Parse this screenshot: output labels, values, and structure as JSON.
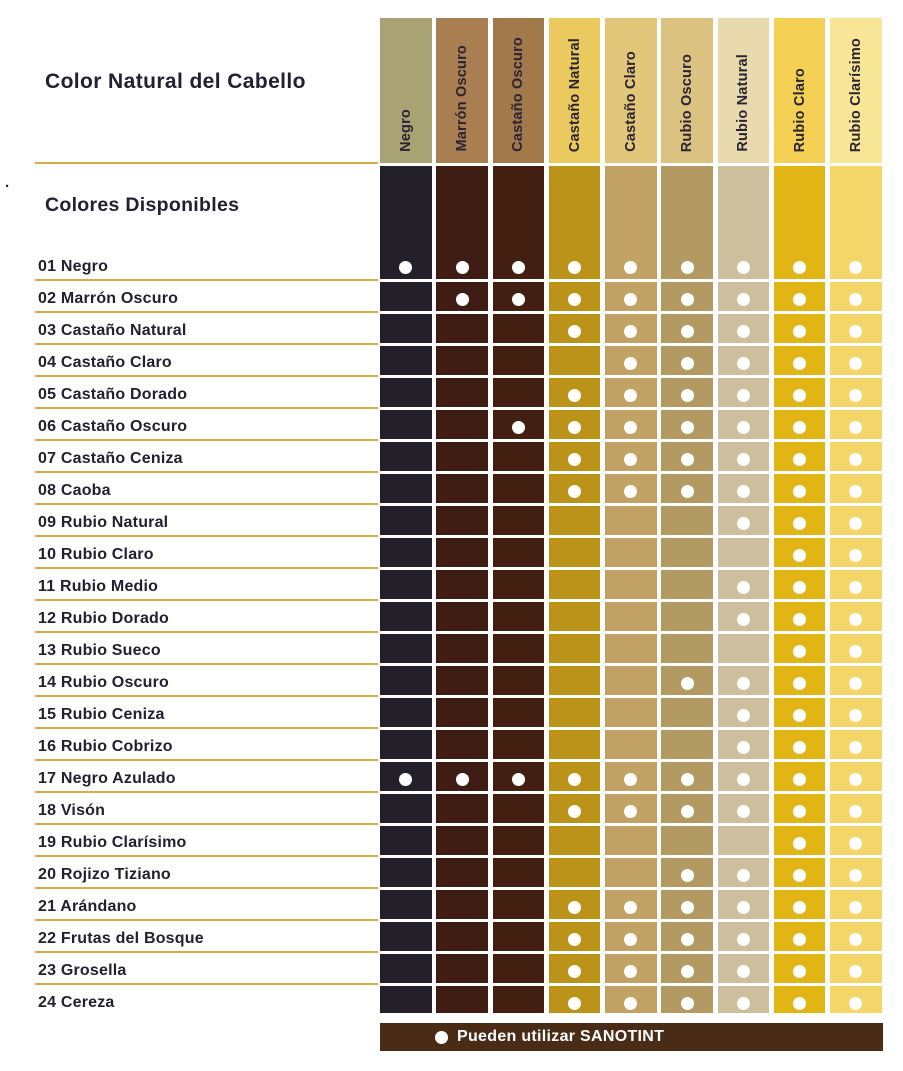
{
  "title": "Color Natural del Cabello",
  "subtitle": "Colores Disponibles",
  "stray_mark": ".",
  "footer": {
    "dot_icon": "legend-dot",
    "label": "Pueden utilizar SANOTINT",
    "bg": "#4a2b16"
  },
  "colors": {
    "background": "#ffffff",
    "gold_line": "#d9ad45",
    "text_dark": "#232031",
    "dot_white": "#ffffff"
  },
  "columns": [
    {
      "label": "Negro",
      "header": "#a8a274",
      "body": "#242029"
    },
    {
      "label": "Marrón Oscuro",
      "header": "#a97f52",
      "body": "#3f1c14"
    },
    {
      "label": "Castaño Oscuro",
      "header": "#a2794b",
      "body": "#421f10"
    },
    {
      "label": "Castaño Natural",
      "header": "#eac95e",
      "body": "#ba9318"
    },
    {
      "label": "Castaño Claro",
      "header": "#e2c77a",
      "body": "#c1a164"
    },
    {
      "label": "Rubio Oscuro",
      "header": "#dcc280",
      "body": "#b29a62"
    },
    {
      "label": "Rubio Natural",
      "header": "#e9daae",
      "body": "#cdbf9e"
    },
    {
      "label": "Rubio Claro",
      "header": "#f4d055",
      "body": "#e1b513"
    },
    {
      "label": "Rubio Clarísimo",
      "header": "#f7e695",
      "body": "#f4d668"
    }
  ],
  "rows": [
    {
      "label": "01 Negro",
      "compatible": [
        1,
        1,
        1,
        1,
        1,
        1,
        1,
        1,
        1
      ]
    },
    {
      "label": "02 Marrón Oscuro",
      "compatible": [
        0,
        1,
        1,
        1,
        1,
        1,
        1,
        1,
        1
      ]
    },
    {
      "label": "03 Castaño Natural",
      "compatible": [
        0,
        0,
        0,
        1,
        1,
        1,
        1,
        1,
        1
      ]
    },
    {
      "label": "04 Castaño Claro",
      "compatible": [
        0,
        0,
        0,
        0,
        1,
        1,
        1,
        1,
        1
      ]
    },
    {
      "label": "05 Castaño Dorado",
      "compatible": [
        0,
        0,
        0,
        1,
        1,
        1,
        1,
        1,
        1
      ]
    },
    {
      "label": "06 Castaño Oscuro",
      "compatible": [
        0,
        0,
        1,
        1,
        1,
        1,
        1,
        1,
        1
      ]
    },
    {
      "label": "07 Castaño Ceniza",
      "compatible": [
        0,
        0,
        0,
        1,
        1,
        1,
        1,
        1,
        1
      ]
    },
    {
      "label": "08 Caoba",
      "compatible": [
        0,
        0,
        0,
        1,
        1,
        1,
        1,
        1,
        1
      ]
    },
    {
      "label": "09 Rubio Natural",
      "compatible": [
        0,
        0,
        0,
        0,
        0,
        0,
        1,
        1,
        1
      ]
    },
    {
      "label": "10 Rubio Claro",
      "compatible": [
        0,
        0,
        0,
        0,
        0,
        0,
        0,
        1,
        1
      ]
    },
    {
      "label": "11 Rubio Medio",
      "compatible": [
        0,
        0,
        0,
        0,
        0,
        0,
        1,
        1,
        1
      ]
    },
    {
      "label": "12 Rubio Dorado",
      "compatible": [
        0,
        0,
        0,
        0,
        0,
        0,
        1,
        1,
        1
      ]
    },
    {
      "label": "13 Rubio Sueco",
      "compatible": [
        0,
        0,
        0,
        0,
        0,
        0,
        0,
        1,
        1
      ]
    },
    {
      "label": "14 Rubio Oscuro",
      "compatible": [
        0,
        0,
        0,
        0,
        0,
        1,
        1,
        1,
        1
      ]
    },
    {
      "label": "15 Rubio Ceniza",
      "compatible": [
        0,
        0,
        0,
        0,
        0,
        0,
        1,
        1,
        1
      ]
    },
    {
      "label": "16 Rubio Cobrizo",
      "compatible": [
        0,
        0,
        0,
        0,
        0,
        0,
        1,
        1,
        1
      ]
    },
    {
      "label": "17 Negro Azulado",
      "compatible": [
        1,
        1,
        1,
        1,
        1,
        1,
        1,
        1,
        1
      ]
    },
    {
      "label": "18 Visón",
      "compatible": [
        0,
        0,
        0,
        1,
        1,
        1,
        1,
        1,
        1
      ]
    },
    {
      "label": "19 Rubio Clarísimo",
      "compatible": [
        0,
        0,
        0,
        0,
        0,
        0,
        0,
        1,
        1
      ]
    },
    {
      "label": "20 Rojizo Tiziano",
      "compatible": [
        0,
        0,
        0,
        0,
        0,
        1,
        1,
        1,
        1
      ]
    },
    {
      "label": "21 Arándano",
      "compatible": [
        0,
        0,
        0,
        1,
        1,
        1,
        1,
        1,
        1
      ]
    },
    {
      "label": "22 Frutas del Bosque",
      "compatible": [
        0,
        0,
        0,
        1,
        1,
        1,
        1,
        1,
        1
      ]
    },
    {
      "label": "23 Grosella",
      "compatible": [
        0,
        0,
        0,
        1,
        1,
        1,
        1,
        1,
        1
      ]
    },
    {
      "label": "24 Cereza",
      "compatible": [
        0,
        0,
        0,
        1,
        1,
        1,
        1,
        1,
        1
      ]
    }
  ],
  "chart_data": {
    "type": "table",
    "title": "Color Natural del Cabello",
    "subtitle": "Colores Disponibles",
    "legend": "● Pueden utilizar SANOTINT",
    "columns": [
      "Negro",
      "Marrón Oscuro",
      "Castaño Oscuro",
      "Castaño Natural",
      "Castaño Claro",
      "Rubio Oscuro",
      "Rubio Natural",
      "Rubio Claro",
      "Rubio Clarísimo"
    ],
    "rows": [
      "01 Negro",
      "02 Marrón Oscuro",
      "03 Castaño Natural",
      "04 Castaño Claro",
      "05 Castaño Dorado",
      "06 Castaño Oscuro",
      "07 Castaño Ceniza",
      "08 Caoba",
      "09 Rubio Natural",
      "10 Rubio Claro",
      "11 Rubio Medio",
      "12 Rubio Dorado",
      "13 Rubio Sueco",
      "14 Rubio Oscuro",
      "15 Rubio Ceniza",
      "16 Rubio Cobrizo",
      "17 Negro Azulado",
      "18 Visón",
      "19 Rubio Clarísimo",
      "20 Rojizo Tiziano",
      "21 Arándano",
      "22 Frutas del Bosque",
      "23 Grosella",
      "24 Cereza"
    ],
    "matrix": [
      [
        1,
        1,
        1,
        1,
        1,
        1,
        1,
        1,
        1
      ],
      [
        0,
        1,
        1,
        1,
        1,
        1,
        1,
        1,
        1
      ],
      [
        0,
        0,
        0,
        1,
        1,
        1,
        1,
        1,
        1
      ],
      [
        0,
        0,
        0,
        0,
        1,
        1,
        1,
        1,
        1
      ],
      [
        0,
        0,
        0,
        1,
        1,
        1,
        1,
        1,
        1
      ],
      [
        0,
        0,
        1,
        1,
        1,
        1,
        1,
        1,
        1
      ],
      [
        0,
        0,
        0,
        1,
        1,
        1,
        1,
        1,
        1
      ],
      [
        0,
        0,
        0,
        1,
        1,
        1,
        1,
        1,
        1
      ],
      [
        0,
        0,
        0,
        0,
        0,
        0,
        1,
        1,
        1
      ],
      [
        0,
        0,
        0,
        0,
        0,
        0,
        0,
        1,
        1
      ],
      [
        0,
        0,
        0,
        0,
        0,
        0,
        1,
        1,
        1
      ],
      [
        0,
        0,
        0,
        0,
        0,
        0,
        1,
        1,
        1
      ],
      [
        0,
        0,
        0,
        0,
        0,
        0,
        0,
        1,
        1
      ],
      [
        0,
        0,
        0,
        0,
        0,
        1,
        1,
        1,
        1
      ],
      [
        0,
        0,
        0,
        0,
        0,
        0,
        1,
        1,
        1
      ],
      [
        0,
        0,
        0,
        0,
        0,
        0,
        1,
        1,
        1
      ],
      [
        1,
        1,
        1,
        1,
        1,
        1,
        1,
        1,
        1
      ],
      [
        0,
        0,
        0,
        1,
        1,
        1,
        1,
        1,
        1
      ],
      [
        0,
        0,
        0,
        0,
        0,
        0,
        0,
        1,
        1
      ],
      [
        0,
        0,
        0,
        0,
        0,
        1,
        1,
        1,
        1
      ],
      [
        0,
        0,
        0,
        1,
        1,
        1,
        1,
        1,
        1
      ],
      [
        0,
        0,
        0,
        1,
        1,
        1,
        1,
        1,
        1
      ],
      [
        0,
        0,
        0,
        1,
        1,
        1,
        1,
        1,
        1
      ],
      [
        0,
        0,
        0,
        1,
        1,
        1,
        1,
        1,
        1
      ]
    ],
    "cell_marker": "white-dot",
    "grid": false,
    "legend_position": "bottom"
  }
}
